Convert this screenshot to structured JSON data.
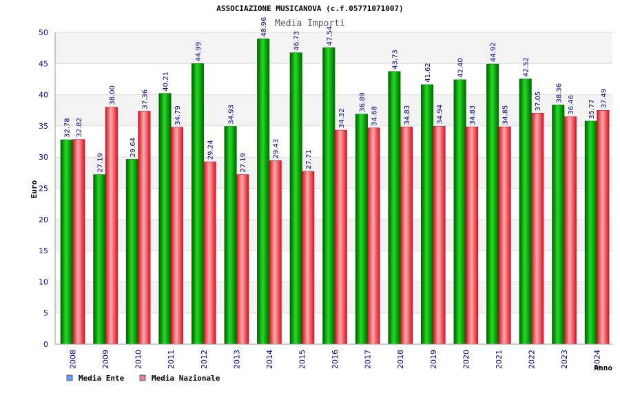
{
  "chart_data": {
    "type": "bar",
    "title": "ASSOCIAZIONE MUSICANOVA (c.f.05771071007)",
    "subtitle": "Media Importi",
    "xlabel": "Anno",
    "ylabel": "Euro",
    "ylim": [
      0,
      50
    ],
    "yticks": [
      0,
      5,
      10,
      15,
      20,
      25,
      30,
      35,
      40,
      45,
      50
    ],
    "categories": [
      "2008",
      "2009",
      "2010",
      "2011",
      "2012",
      "2013",
      "2014",
      "2015",
      "2016",
      "2017",
      "2018",
      "2019",
      "2020",
      "2021",
      "2022",
      "2023",
      "2024"
    ],
    "series": [
      {
        "name": "Media Ente",
        "legend_color": "#6699ff",
        "bar_color": "#00aa00",
        "values": [
          32.78,
          27.19,
          29.64,
          40.21,
          44.99,
          34.93,
          48.96,
          46.73,
          47.54,
          36.89,
          43.73,
          41.62,
          42.4,
          44.92,
          42.52,
          38.36,
          35.77
        ]
      },
      {
        "name": "Media Nazionale",
        "legend_color": "#ee77aa",
        "bar_color": "#ee2233",
        "values": [
          32.82,
          38.0,
          37.36,
          34.79,
          29.24,
          27.19,
          29.43,
          27.71,
          34.32,
          34.68,
          34.83,
          34.94,
          34.83,
          34.85,
          37.05,
          36.46,
          37.49
        ]
      }
    ],
    "grid": true,
    "legend_position": "bottom-left"
  }
}
